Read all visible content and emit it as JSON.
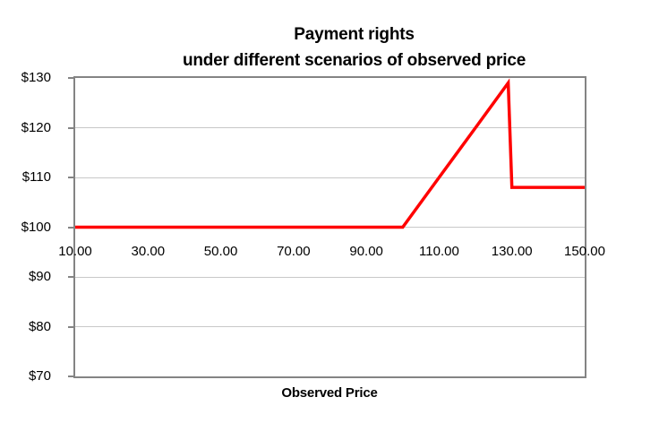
{
  "header": {
    "title_line1": "Payment rights",
    "title_line2": "under different scenarios of observed price"
  },
  "chart_data": {
    "type": "line",
    "title": "Payment rights under different scenarios of observed price",
    "xlabel": "Observed Price",
    "ylabel": "",
    "xlim": [
      10,
      150
    ],
    "ylim": [
      70,
      130
    ],
    "x_ticks": [
      10,
      30,
      50,
      70,
      90,
      110,
      130,
      150
    ],
    "x_tick_labels": [
      "10.00",
      "30.00",
      "50.00",
      "70.00",
      "90.00",
      "110.00",
      "130.00",
      "150.00"
    ],
    "y_ticks": [
      70,
      80,
      90,
      100,
      110,
      120,
      130
    ],
    "y_tick_labels": [
      "$70",
      "$80",
      "$90",
      "$100",
      "$110",
      "$120",
      "$130"
    ],
    "x_axis_cross_at": 100,
    "grid": true,
    "legend": false,
    "series": [
      {
        "name": "Payment rights",
        "color": "#ff0000",
        "points": [
          [
            10,
            100
          ],
          [
            20,
            100
          ],
          [
            30,
            100
          ],
          [
            40,
            100
          ],
          [
            50,
            100
          ],
          [
            60,
            100
          ],
          [
            70,
            100
          ],
          [
            80,
            100
          ],
          [
            90,
            100
          ],
          [
            100,
            100
          ],
          [
            110,
            110
          ],
          [
            120,
            120
          ],
          [
            129,
            129
          ],
          [
            130,
            108
          ],
          [
            140,
            108
          ],
          [
            150,
            108
          ]
        ]
      }
    ],
    "colors": {
      "line": "#ff0000",
      "plot_border": "#848484",
      "gridline": "#c8c8c8",
      "text": "#000000"
    }
  }
}
